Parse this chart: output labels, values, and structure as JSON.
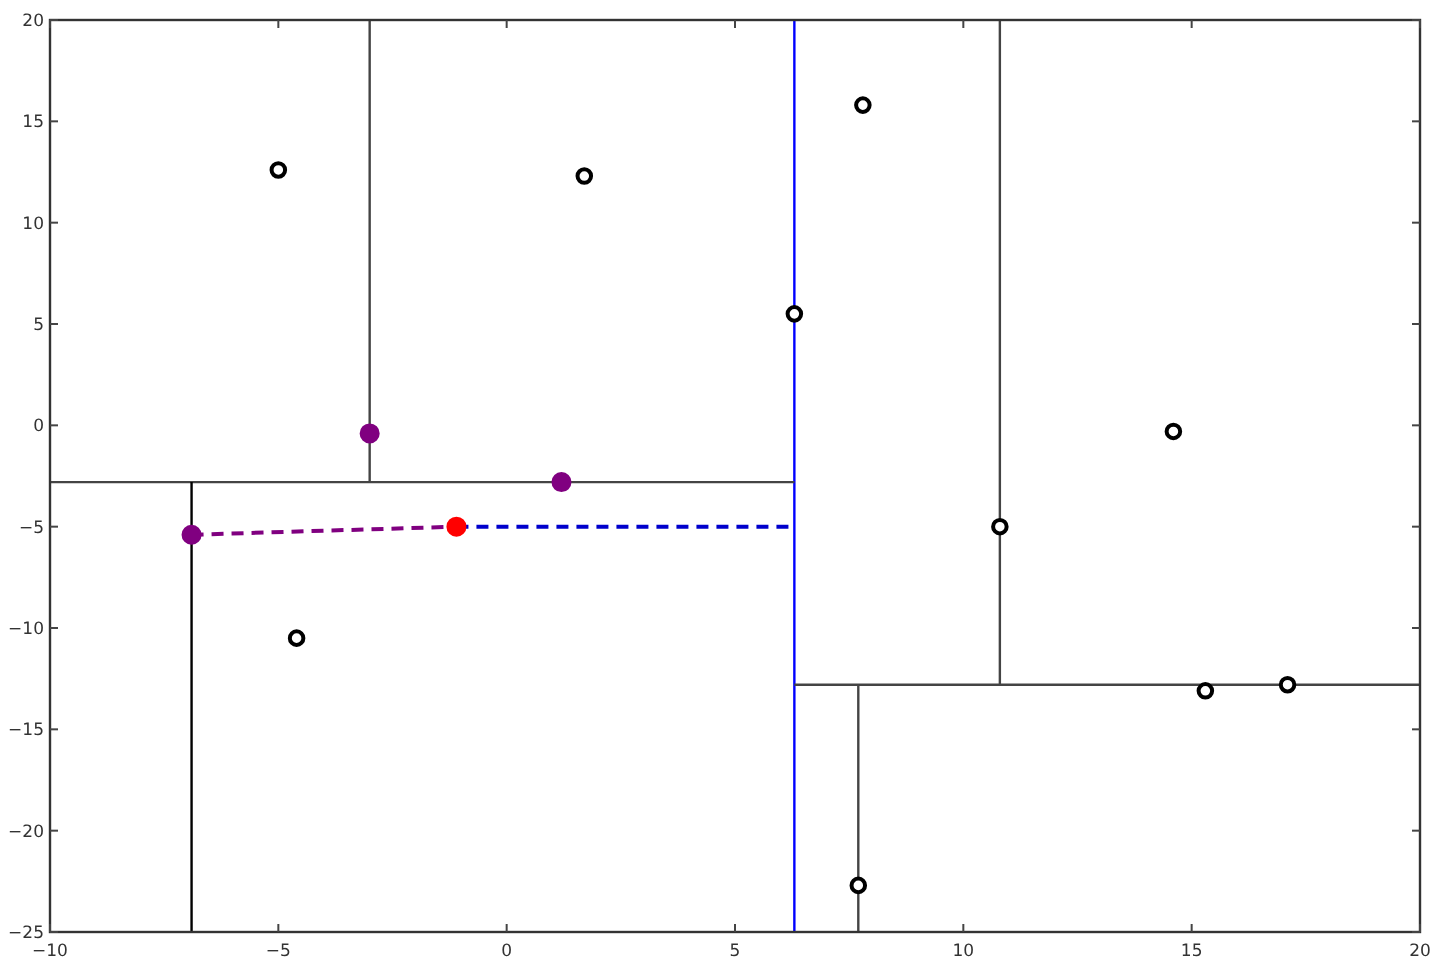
{
  "chart_data": {
    "type": "scatter",
    "xlim": [
      -10,
      20
    ],
    "ylim": [
      -25,
      20
    ],
    "xticks": [
      -10,
      -5,
      0,
      5,
      10,
      15,
      20
    ],
    "yticks": [
      -25,
      -20,
      -15,
      -10,
      -5,
      0,
      5,
      10,
      15,
      20
    ],
    "series": [
      {
        "type": "line",
        "line_style": "solid",
        "color": "#0000ff",
        "x": [
          6.3,
          6.3
        ],
        "values": [
          -25,
          20
        ]
      },
      {
        "type": "line",
        "line_style": "solid",
        "color": "#444444",
        "x": [
          -10,
          6.3
        ],
        "values": [
          -2.8,
          -2.8
        ]
      },
      {
        "type": "line",
        "line_style": "solid",
        "color": "#444444",
        "x": [
          -3.0,
          -3.0
        ],
        "values": [
          -2.8,
          20
        ]
      },
      {
        "type": "line",
        "line_style": "solid",
        "color": "#000000",
        "x": [
          -6.9,
          -6.9
        ],
        "values": [
          -25,
          -2.8
        ]
      },
      {
        "type": "line",
        "line_style": "solid",
        "color": "#444444",
        "x": [
          10.8,
          10.8
        ],
        "values": [
          -12.8,
          20
        ]
      },
      {
        "type": "line",
        "line_style": "solid",
        "color": "#444444",
        "x": [
          6.3,
          20
        ],
        "values": [
          -12.8,
          -12.8
        ]
      },
      {
        "type": "line",
        "line_style": "solid",
        "color": "#444444",
        "x": [
          7.7,
          7.7
        ],
        "values": [
          -25,
          -12.8
        ]
      },
      {
        "type": "line",
        "line_style": "dashed",
        "color": "#800080",
        "x": [
          -6.9,
          -1.1
        ],
        "values": [
          -5.4,
          -5.0
        ]
      },
      {
        "type": "line",
        "line_style": "dashed",
        "color": "#0000cc",
        "x": [
          -1.1,
          6.3
        ],
        "values": [
          -5.0,
          -5.0
        ]
      },
      {
        "marker": "circle",
        "color": "#000000",
        "x": [
          -5.0,
          1.7,
          7.8,
          6.3,
          14.6,
          10.8,
          -4.6,
          15.3,
          17.1,
          7.7
        ],
        "values": [
          12.6,
          12.3,
          15.8,
          5.5,
          -0.3,
          -5.0,
          -10.5,
          -13.1,
          -12.8,
          -22.7
        ]
      },
      {
        "marker": "circle",
        "color": "#800080",
        "x": [
          -3.0,
          1.2,
          -6.9
        ],
        "values": [
          -0.4,
          -2.8,
          -5.4
        ]
      },
      {
        "marker": "circle",
        "color": "#ff0000",
        "x": [
          -1.1
        ],
        "values": [
          -5.0
        ]
      }
    ]
  }
}
